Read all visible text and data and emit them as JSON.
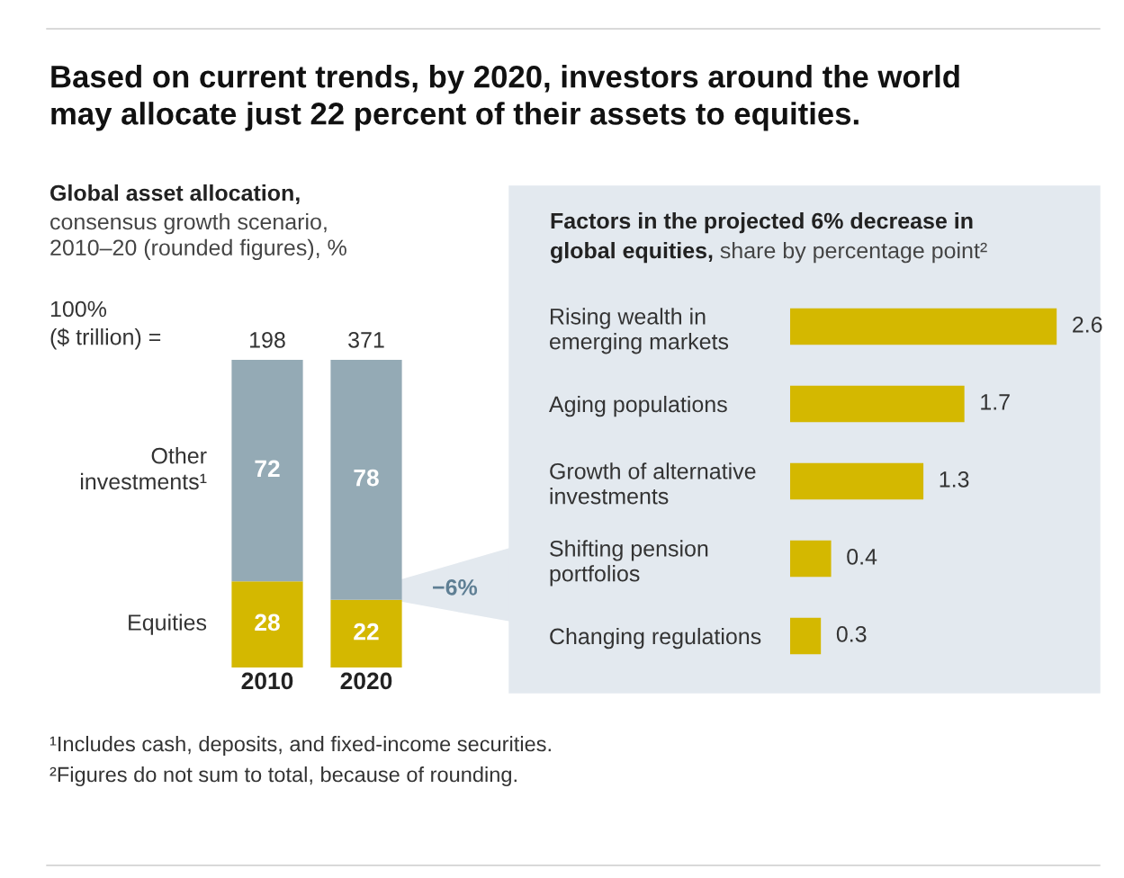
{
  "chart_data": [
    {
      "type": "bar",
      "title": "Based on current trends, by 2020, investors around the world\nmay allocate just 22 percent of their assets to equities.",
      "subtitle": "Global asset allocation,\nconsensus growth scenario,\n2010–20 (rounded figures), %",
      "categories": [
        "2010",
        "2020"
      ],
      "stacked": true,
      "data_labels": true,
      "ylim": [
        0,
        100
      ],
      "tick_labels": "x",
      "legend": false,
      "series": [
        {
          "name": "Equities",
          "color": "#d4b800",
          "values": [
            28,
            22
          ]
        },
        {
          "name": "Other\ninvestments¹",
          "color": "#94aab5",
          "values": [
            72,
            78
          ]
        }
      ],
      "annotations": [
        "100%\n($ trillion) =",
        "−6%",
        "¹Includes cash, deposits, and fixed-income securities.",
        "²Figures do not sum to total, because of rounding.",
        {
          "text": "198",
          "x": "2010",
          "y": 100
        },
        {
          "text": "371",
          "x": "2020",
          "y": 100
        }
      ]
    },
    {
      "type": "bar",
      "orientation": "horizontal",
      "title": "Factors in the projected 6% decrease in\nglobal equities, share by percentage point²",
      "categories": [
        "Rising wealth in\nemerging markets",
        "Aging populations",
        "Growth of alternative\ninvestments",
        "Shifting pension\nportfolios",
        "Changing regulations"
      ],
      "values": [
        2.6,
        1.7,
        1.3,
        0.4,
        0.3
      ],
      "color": "#d4b800",
      "data_labels": true,
      "tick_labels": "y"
    }
  ]
}
